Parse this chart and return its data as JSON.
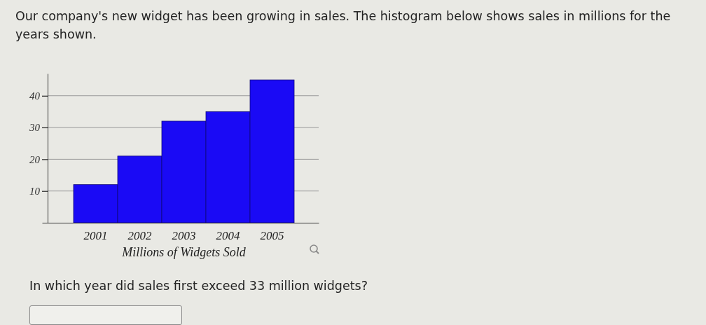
{
  "chart_data": {
    "type": "bar",
    "title": "Our company's new widget has been growing in sales. The histogram below shows sales in millions for the years shown.",
    "categories": [
      "2001",
      "2002",
      "2003",
      "2004",
      "2005"
    ],
    "values": [
      12,
      21,
      32,
      35,
      45
    ],
    "color": "#1a0af5",
    "xlabel": "Millions of Widgets Sold",
    "ylim": [
      0,
      47
    ],
    "yticks": [
      10,
      20,
      30,
      40
    ],
    "grid": "y",
    "annotations": [
      "In which year did sales first exceed 33 million widgets?"
    ]
  }
}
